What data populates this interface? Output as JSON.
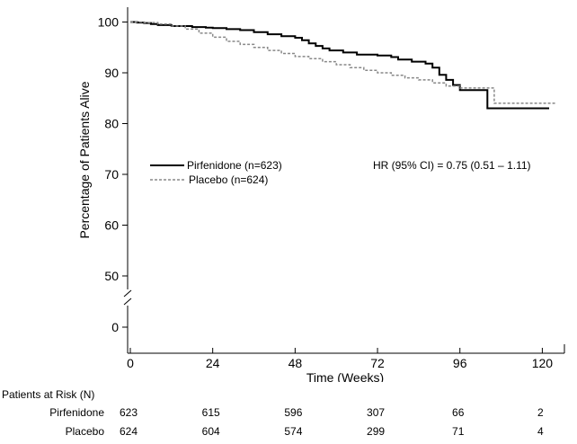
{
  "chart_data": {
    "type": "line",
    "ylabel": "Percentage of Patients Alive",
    "xlabel": "Time (Weeks)",
    "yticks": [
      0,
      50,
      60,
      70,
      80,
      90,
      100
    ],
    "xticks": [
      0,
      24,
      48,
      72,
      96,
      120
    ],
    "ylim": [
      0,
      100
    ],
    "xlim": [
      0,
      124
    ],
    "y_axis_break": true,
    "annotation": "HR (95% CI) = 0.75 (0.51 – 1.11)",
    "legend_position": "center-left",
    "series": [
      {
        "name": "Pirfenidone (n=623)",
        "style": "solid",
        "color": "#000000",
        "points": [
          [
            0,
            100
          ],
          [
            2,
            99.9
          ],
          [
            4,
            99.8
          ],
          [
            6,
            99.6
          ],
          [
            8,
            99.4
          ],
          [
            12,
            99.2
          ],
          [
            18,
            99.0
          ],
          [
            22,
            98.9
          ],
          [
            24,
            98.8
          ],
          [
            28,
            98.6
          ],
          [
            32,
            98.4
          ],
          [
            36,
            98.0
          ],
          [
            40,
            97.6
          ],
          [
            44,
            97.2
          ],
          [
            48,
            96.9
          ],
          [
            50,
            96.4
          ],
          [
            52,
            95.8
          ],
          [
            54,
            95.3
          ],
          [
            56,
            94.8
          ],
          [
            58,
            94.4
          ],
          [
            62,
            94.0
          ],
          [
            66,
            93.6
          ],
          [
            72,
            93.4
          ],
          [
            76,
            93.1
          ],
          [
            78,
            92.6
          ],
          [
            82,
            92.2
          ],
          [
            86,
            91.8
          ],
          [
            88,
            91.0
          ],
          [
            90,
            89.6
          ],
          [
            92,
            88.6
          ],
          [
            94,
            87.6
          ],
          [
            96,
            86.6
          ],
          [
            104,
            86.6
          ],
          [
            104,
            83.0
          ],
          [
            122,
            83.0
          ]
        ]
      },
      {
        "name": "Placebo (n=624)",
        "style": "dashed",
        "color": "#888888",
        "points": [
          [
            0,
            100
          ],
          [
            4,
            99.9
          ],
          [
            8,
            99.6
          ],
          [
            12,
            99.2
          ],
          [
            16,
            98.6
          ],
          [
            20,
            97.8
          ],
          [
            24,
            97.0
          ],
          [
            28,
            96.2
          ],
          [
            32,
            95.6
          ],
          [
            36,
            95.0
          ],
          [
            40,
            94.4
          ],
          [
            44,
            93.8
          ],
          [
            48,
            93.2
          ],
          [
            52,
            92.8
          ],
          [
            56,
            92.2
          ],
          [
            60,
            91.6
          ],
          [
            64,
            91.0
          ],
          [
            68,
            90.5
          ],
          [
            72,
            90.0
          ],
          [
            76,
            89.5
          ],
          [
            80,
            89.0
          ],
          [
            84,
            88.6
          ],
          [
            88,
            88.0
          ],
          [
            92,
            87.4
          ],
          [
            96,
            87.0
          ],
          [
            106,
            87.0
          ],
          [
            106,
            84.0
          ],
          [
            124,
            84.0
          ]
        ]
      }
    ]
  },
  "risk_table": {
    "title": "Patients at Risk (N)",
    "times": [
      0,
      24,
      48,
      72,
      96,
      120
    ],
    "rows": [
      {
        "name": "Pirfenidone",
        "values": [
          "623",
          "615",
          "596",
          "307",
          "66",
          "2"
        ]
      },
      {
        "name": "Placebo",
        "values": [
          "624",
          "604",
          "574",
          "299",
          "71",
          "4"
        ]
      }
    ]
  }
}
